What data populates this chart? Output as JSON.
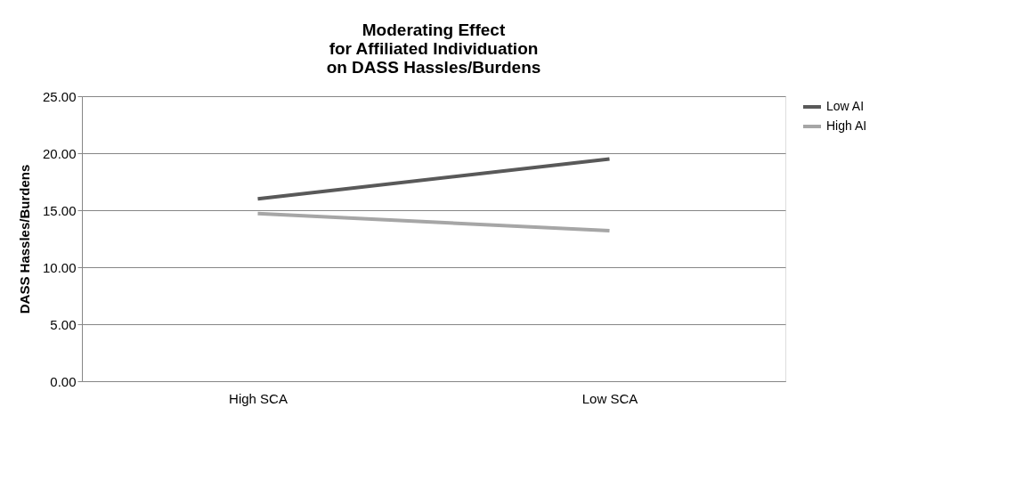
{
  "chart_data": {
    "type": "line",
    "title": "Moderating Effect\nfor Affiliated Individuation\non DASS Hassles/Burdens",
    "ylabel": "DASS Hassles/Burdens",
    "categories": [
      "High SCA",
      "Low SCA"
    ],
    "series": [
      {
        "name": "Low AI",
        "color": "#595959",
        "values": [
          16.0,
          19.5
        ]
      },
      {
        "name": "High AI",
        "color": "#a6a6a6",
        "values": [
          14.7,
          13.2
        ]
      }
    ],
    "ylim": [
      0,
      25
    ],
    "yticks": [
      {
        "value": 0,
        "label": "0.00"
      },
      {
        "value": 5,
        "label": "5.00"
      },
      {
        "value": 10,
        "label": "10.00"
      },
      {
        "value": 15,
        "label": "15.00"
      },
      {
        "value": 20,
        "label": "20.00"
      },
      {
        "value": 25,
        "label": "25.00"
      }
    ],
    "grid": "y",
    "legend": "right",
    "marker": "none",
    "line_style": "solid"
  }
}
